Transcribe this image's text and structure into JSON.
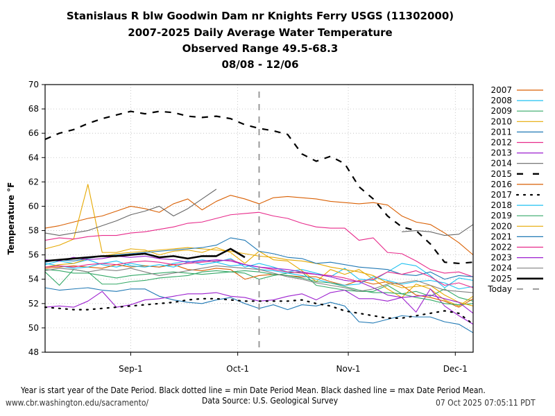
{
  "titles": [
    "Stanislaus R blw Goodwin Dam nr Knights Ferry USGS (11302000)",
    "2007-2025 Daily Average Water Temperature",
    "Observed Range 49.5-68.3",
    "08/08 - 12/06"
  ],
  "footer": {
    "note": "Year is start year of the Date Period. Black dotted line = min Date Period Mean. Black dashed line = max Date Period Mean.",
    "source": "Data Source: U.S. Geological Survey",
    "url": "www.cbr.washington.edu/sacramento/",
    "timestamp": "07 Oct 2025 07:05:11 PDT"
  },
  "chart_data": {
    "type": "line",
    "title": "Stanislaus R blw Goodwin Dam nr Knights Ferry USGS (11302000) 2007-2025 Daily Average Water Temperature",
    "subtitle": "Observed Range 49.5-68.3, 08/08 - 12/06",
    "xlabel": "",
    "ylabel": "Temperature °F",
    "x_unit": "days since Aug-8",
    "xlim": [
      0,
      120
    ],
    "ylim": [
      48,
      70
    ],
    "yticks": [
      48,
      50,
      52,
      54,
      56,
      58,
      60,
      62,
      64,
      66,
      68,
      70
    ],
    "xticks": [
      {
        "day": 24,
        "label": "Sep-1"
      },
      {
        "day": 54,
        "label": "Oct-1"
      },
      {
        "day": 85,
        "label": "Nov-1"
      },
      {
        "day": 115,
        "label": "Dec-1"
      }
    ],
    "grid": true,
    "legend_position": "right",
    "today_day": 60,
    "x": [
      0,
      4,
      8,
      12,
      16,
      20,
      24,
      28,
      32,
      36,
      40,
      44,
      48,
      52,
      56,
      60,
      64,
      68,
      72,
      76,
      80,
      84,
      88,
      92,
      96,
      100,
      104,
      108,
      112,
      116,
      120
    ],
    "series": [
      {
        "name": "2007",
        "color": "#d95f02",
        "style": "solid",
        "values": [
          58.2,
          58.4,
          58.7,
          59.0,
          59.2,
          59.6,
          60.0,
          59.8,
          59.5,
          60.2,
          60.6,
          59.7,
          60.4,
          60.9,
          60.6,
          60.2,
          60.7,
          60.8,
          60.7,
          60.6,
          60.4,
          60.3,
          60.2,
          60.3,
          60.1,
          59.2,
          58.7,
          58.5,
          57.8,
          57.0,
          56.0
        ]
      },
      {
        "name": "2008",
        "color": "#1ec0f0",
        "style": "solid",
        "values": [
          55.2,
          55.5,
          55.3,
          55.6,
          55.2,
          55.0,
          55.3,
          55.1,
          55.0,
          55.3,
          55.5,
          55.2,
          55.4,
          55.7,
          55.0,
          55.3,
          55.0,
          54.6,
          54.8,
          54.5,
          54.2,
          54.9,
          54.0,
          53.9,
          54.6,
          55.3,
          55.1,
          54.3,
          53.3,
          54.1,
          53.9
        ]
      },
      {
        "name": "2009",
        "color": "#33a866",
        "style": "solid",
        "values": [
          54.6,
          53.5,
          54.8,
          54.6,
          53.6,
          53.6,
          53.8,
          53.9,
          54.1,
          54.2,
          54.3,
          54.6,
          54.7,
          54.6,
          54.5,
          54.0,
          54.3,
          54.5,
          54.6,
          53.5,
          53.3,
          53.1,
          53.0,
          53.0,
          53.5,
          52.8,
          53.0,
          52.6,
          53.2,
          52.5,
          52.2
        ]
      },
      {
        "name": "2010",
        "color": "#e6a800",
        "style": "solid",
        "values": [
          56.5,
          56.8,
          57.3,
          61.8,
          56.2,
          56.2,
          56.5,
          56.4,
          56.0,
          56.3,
          56.4,
          56.2,
          56.6,
          56.2,
          55.3,
          56.3,
          55.6,
          55.5,
          54.7,
          53.8,
          54.8,
          54.4,
          54.8,
          54.0,
          53.2,
          52.5,
          53.6,
          53.2,
          52.3,
          51.8,
          52.6
        ]
      },
      {
        "name": "2011",
        "color": "#1f78b4",
        "style": "solid",
        "values": [
          53.3,
          53.1,
          53.2,
          53.3,
          53.1,
          53.0,
          53.2,
          53.2,
          52.6,
          52.3,
          52.1,
          52.0,
          52.3,
          52.5,
          52.0,
          51.6,
          51.9,
          51.5,
          51.9,
          51.8,
          52.1,
          51.8,
          50.5,
          50.4,
          50.7,
          51.0,
          50.9,
          50.9,
          50.5,
          50.3,
          49.6
        ]
      },
      {
        "name": "2012",
        "color": "#e7298a",
        "style": "solid",
        "values": [
          57.2,
          57.4,
          57.3,
          57.5,
          57.6,
          57.6,
          57.8,
          57.9,
          58.1,
          58.3,
          58.6,
          58.7,
          59.0,
          59.3,
          59.4,
          59.5,
          59.2,
          59.0,
          58.6,
          58.3,
          58.2,
          58.2,
          57.2,
          57.4,
          56.2,
          56.1,
          55.5,
          54.8,
          54.5,
          54.6,
          54.2
        ]
      },
      {
        "name": "2013",
        "color": "#9c1fcf",
        "style": "solid",
        "values": [
          51.7,
          51.8,
          51.7,
          52.2,
          53.0,
          51.7,
          51.9,
          52.3,
          52.4,
          52.6,
          52.8,
          52.8,
          52.9,
          52.6,
          52.5,
          52.2,
          52.3,
          52.6,
          52.8,
          52.3,
          52.9,
          53.1,
          52.4,
          52.4,
          52.2,
          52.5,
          51.3,
          53.2,
          51.8,
          51.0,
          50.3
        ]
      },
      {
        "name": "2014",
        "color": "#666666",
        "style": "solid",
        "values": [
          57.8,
          57.6,
          57.8,
          58.0,
          58.4,
          58.8,
          59.3,
          59.6,
          60.0,
          59.2,
          59.8,
          60.6,
          61.4,
          null,
          null,
          60.8,
          null,
          null,
          null,
          null,
          null,
          null,
          null,
          null,
          null,
          57.9,
          58.0,
          57.9,
          57.6,
          57.7,
          58.5
        ]
      },
      {
        "name": "2015",
        "color": "#000000",
        "style": "dashed",
        "values": [
          65.5,
          66.0,
          66.3,
          66.8,
          67.2,
          67.5,
          67.8,
          67.6,
          67.8,
          67.7,
          67.4,
          67.3,
          67.4,
          67.2,
          66.7,
          66.4,
          66.2,
          65.9,
          64.3,
          63.7,
          64.1,
          63.5,
          61.6,
          60.6,
          59.2,
          58.3,
          58.0,
          56.9,
          55.4,
          55.3,
          55.4
        ]
      },
      {
        "name": "2016",
        "color": "#d95f02",
        "style": "solid",
        "values": [
          54.9,
          55.0,
          55.1,
          55.0,
          54.9,
          55.2,
          55.0,
          55.1,
          55.0,
          55.2,
          54.8,
          54.7,
          54.9,
          54.8,
          54.0,
          54.3,
          54.4,
          54.3,
          54.2,
          54.2,
          53.8,
          53.5,
          53.9,
          53.6,
          53.8,
          53.5,
          52.7,
          52.5,
          52.2,
          51.7,
          52.4
        ]
      },
      {
        "name": "2017",
        "color": "#000000",
        "style": "dotted",
        "values": [
          51.7,
          51.6,
          51.5,
          51.5,
          51.6,
          51.7,
          51.8,
          51.9,
          52.0,
          52.1,
          52.3,
          52.4,
          52.4,
          52.3,
          52.2,
          52.2,
          52.2,
          52.2,
          52.3,
          52.0,
          51.8,
          51.4,
          51.2,
          51.0,
          50.8,
          50.8,
          51.0,
          51.2,
          51.4,
          51.2,
          50.3
        ]
      },
      {
        "name": "2018",
        "color": "#1ec0f0",
        "style": "solid",
        "values": [
          55.3,
          55.1,
          54.9,
          55.0,
          55.3,
          55.5,
          55.1,
          55.0,
          55.2,
          55.0,
          55.4,
          55.6,
          55.4,
          55.1,
          55.2,
          54.8,
          54.7,
          54.5,
          54.3,
          54.0,
          53.7,
          53.5,
          53.6,
          54.2,
          53.9,
          53.6,
          53.8,
          53.9,
          53.7,
          53.2,
          53.4
        ]
      },
      {
        "name": "2019",
        "color": "#33a866",
        "style": "solid",
        "values": [
          54.8,
          54.7,
          54.5,
          54.5,
          54.3,
          54.1,
          54.3,
          54.4,
          54.5,
          54.6,
          54.5,
          54.4,
          54.5,
          54.6,
          54.7,
          54.6,
          54.4,
          54.3,
          54.1,
          53.8,
          53.7,
          53.4,
          53.1,
          52.9,
          52.9,
          52.8,
          52.5,
          52.3,
          52.0,
          51.9,
          52.0
        ]
      },
      {
        "name": "2020",
        "color": "#e6a800",
        "style": "solid",
        "values": [
          55.0,
          55.2,
          55.3,
          55.7,
          55.9,
          56.1,
          56.2,
          56.3,
          56.4,
          56.5,
          56.6,
          56.5,
          56.4,
          56.3,
          56.1,
          55.9,
          55.8,
          55.6,
          55.5,
          55.3,
          55.0,
          54.8,
          54.6,
          54.3,
          53.7,
          53.3,
          53.4,
          53.5,
          52.7,
          52.1,
          51.8
        ]
      },
      {
        "name": "2021",
        "color": "#1f78b4",
        "style": "solid",
        "values": [
          55.4,
          55.6,
          55.5,
          55.7,
          55.9,
          56.0,
          56.1,
          56.2,
          56.3,
          56.4,
          56.5,
          56.6,
          56.8,
          57.4,
          57.2,
          56.3,
          56.1,
          55.8,
          55.7,
          55.3,
          55.4,
          55.2,
          55.0,
          54.9,
          54.8,
          54.4,
          54.3,
          54.6,
          54.0,
          54.3,
          54.2
        ]
      },
      {
        "name": "2022",
        "color": "#e7298a",
        "style": "solid",
        "values": [
          55.0,
          55.1,
          55.0,
          55.2,
          55.3,
          55.2,
          55.4,
          55.5,
          55.4,
          55.2,
          55.3,
          55.4,
          55.5,
          55.6,
          55.2,
          55.0,
          54.8,
          54.6,
          54.5,
          54.4,
          54.3,
          54.1,
          53.8,
          54.0,
          54.6,
          54.4,
          54.7,
          54.2,
          53.5,
          53.7,
          53.3
        ]
      },
      {
        "name": "2023",
        "color": "#9c1fcf",
        "style": "solid",
        "values": [
          55.6,
          55.5,
          55.8,
          55.6,
          55.7,
          55.9,
          55.8,
          55.9,
          55.7,
          55.6,
          55.4,
          55.5,
          55.6,
          55.5,
          55.2,
          55.0,
          54.9,
          54.8,
          54.6,
          54.4,
          54.2,
          53.9,
          53.8,
          53.3,
          52.7,
          52.5,
          52.6,
          52.7,
          52.4,
          52.1,
          51.2
        ]
      },
      {
        "name": "2024",
        "color": "#808080",
        "style": "solid",
        "values": [
          54.7,
          54.9,
          54.8,
          54.6,
          54.8,
          54.7,
          54.9,
          54.6,
          54.3,
          54.5,
          54.7,
          54.9,
          55.1,
          55.0,
          54.9,
          54.8,
          54.5,
          54.2,
          54.0,
          53.7,
          53.5,
          53.3,
          53.0,
          53.2,
          53.6,
          53.7,
          53.9,
          53.5,
          53.1,
          53.0,
          52.9
        ]
      },
      {
        "name": "2025",
        "color": "#000000",
        "style": "thick",
        "values": [
          55.5,
          55.6,
          55.7,
          55.8,
          55.9,
          55.9,
          56.0,
          56.1,
          55.8,
          55.9,
          55.7,
          55.9,
          55.9,
          56.5,
          55.8,
          null,
          null,
          null,
          null,
          null,
          null,
          null,
          null,
          null,
          null,
          null,
          null,
          null,
          null,
          null,
          null
        ]
      }
    ]
  }
}
